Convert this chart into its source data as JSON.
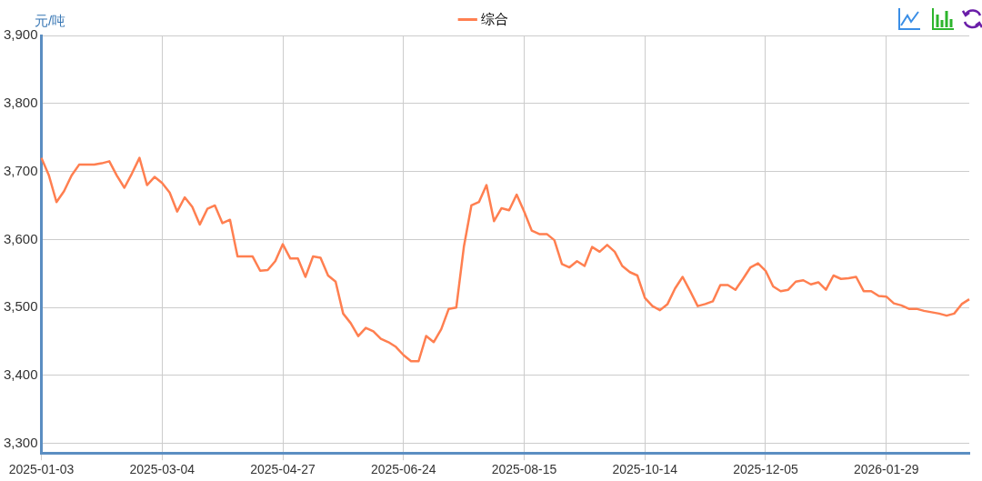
{
  "chart_data": {
    "type": "line",
    "ylabel": "元/吨",
    "categories": [
      "2025-01-03",
      null,
      null,
      null,
      null,
      null,
      null,
      null,
      null,
      null,
      null,
      null,
      null,
      null,
      null,
      null,
      "2025-03-04",
      null,
      null,
      null,
      null,
      null,
      null,
      null,
      null,
      null,
      null,
      null,
      null,
      null,
      null,
      null,
      "2025-04-27",
      null,
      null,
      null,
      null,
      null,
      null,
      null,
      null,
      null,
      null,
      null,
      null,
      null,
      null,
      null,
      "2025-06-24",
      null,
      null,
      null,
      null,
      null,
      null,
      null,
      null,
      null,
      null,
      null,
      null,
      null,
      null,
      null,
      "2025-08-15",
      null,
      null,
      null,
      null,
      null,
      null,
      null,
      null,
      null,
      null,
      null,
      null,
      null,
      null,
      null,
      "2025-10-14",
      null,
      null,
      null,
      null,
      null,
      null,
      null,
      null,
      null,
      null,
      null,
      null,
      null,
      null,
      null,
      "2025-12-05",
      null,
      null,
      null,
      null,
      null,
      null,
      null,
      null,
      null,
      null,
      null,
      null,
      null,
      null,
      null,
      "2026-01-29",
      null,
      null,
      null,
      null,
      null,
      null,
      null,
      null,
      null,
      null,
      null
    ],
    "series": [
      {
        "name": "综合",
        "color": "#ff7f50",
        "values": [
          3720,
          3694,
          3655,
          3671,
          3694,
          3710,
          3710,
          3710,
          3712,
          3715,
          3694,
          3676,
          3697,
          3720,
          3680,
          3692,
          3683,
          3669,
          3641,
          3662,
          3648,
          3622,
          3645,
          3650,
          3624,
          3629,
          3575,
          3575,
          3575,
          3554,
          3555,
          3568,
          3593,
          3572,
          3572,
          3545,
          3575,
          3573,
          3547,
          3538,
          3491,
          3477,
          3458,
          3470,
          3465,
          3454,
          3449,
          3442,
          3430,
          3421,
          3421,
          3458,
          3449,
          3468,
          3498,
          3500,
          3589,
          3650,
          3655,
          3680,
          3627,
          3646,
          3643,
          3666,
          3641,
          3613,
          3608,
          3608,
          3599,
          3564,
          3559,
          3568,
          3561,
          3589,
          3582,
          3592,
          3582,
          3561,
          3552,
          3547,
          3514,
          3502,
          3496,
          3505,
          3528,
          3545,
          3524,
          3502,
          3505,
          3509,
          3533,
          3533,
          3526,
          3542,
          3559,
          3565,
          3554,
          3531,
          3524,
          3526,
          3538,
          3540,
          3534,
          3537,
          3526,
          3547,
          3542,
          3543,
          3545,
          3524,
          3524,
          3517,
          3516,
          3506,
          3503,
          3498,
          3498,
          3495,
          3493,
          3491,
          3488,
          3491,
          3505,
          3512
        ]
      }
    ],
    "ylim": [
      3286,
      3900
    ],
    "yticks": [
      {
        "value": 3300,
        "label": "3,300"
      },
      {
        "value": 3400,
        "label": "3,400"
      },
      {
        "value": 3500,
        "label": "3,500"
      },
      {
        "value": 3600,
        "label": "3,600"
      },
      {
        "value": 3700,
        "label": "3,700"
      },
      {
        "value": 3800,
        "label": "3,800"
      },
      {
        "value": 3900,
        "label": "3,900"
      }
    ],
    "grid": true,
    "legend": "top",
    "marker": "none",
    "line_style": "solid"
  }
}
